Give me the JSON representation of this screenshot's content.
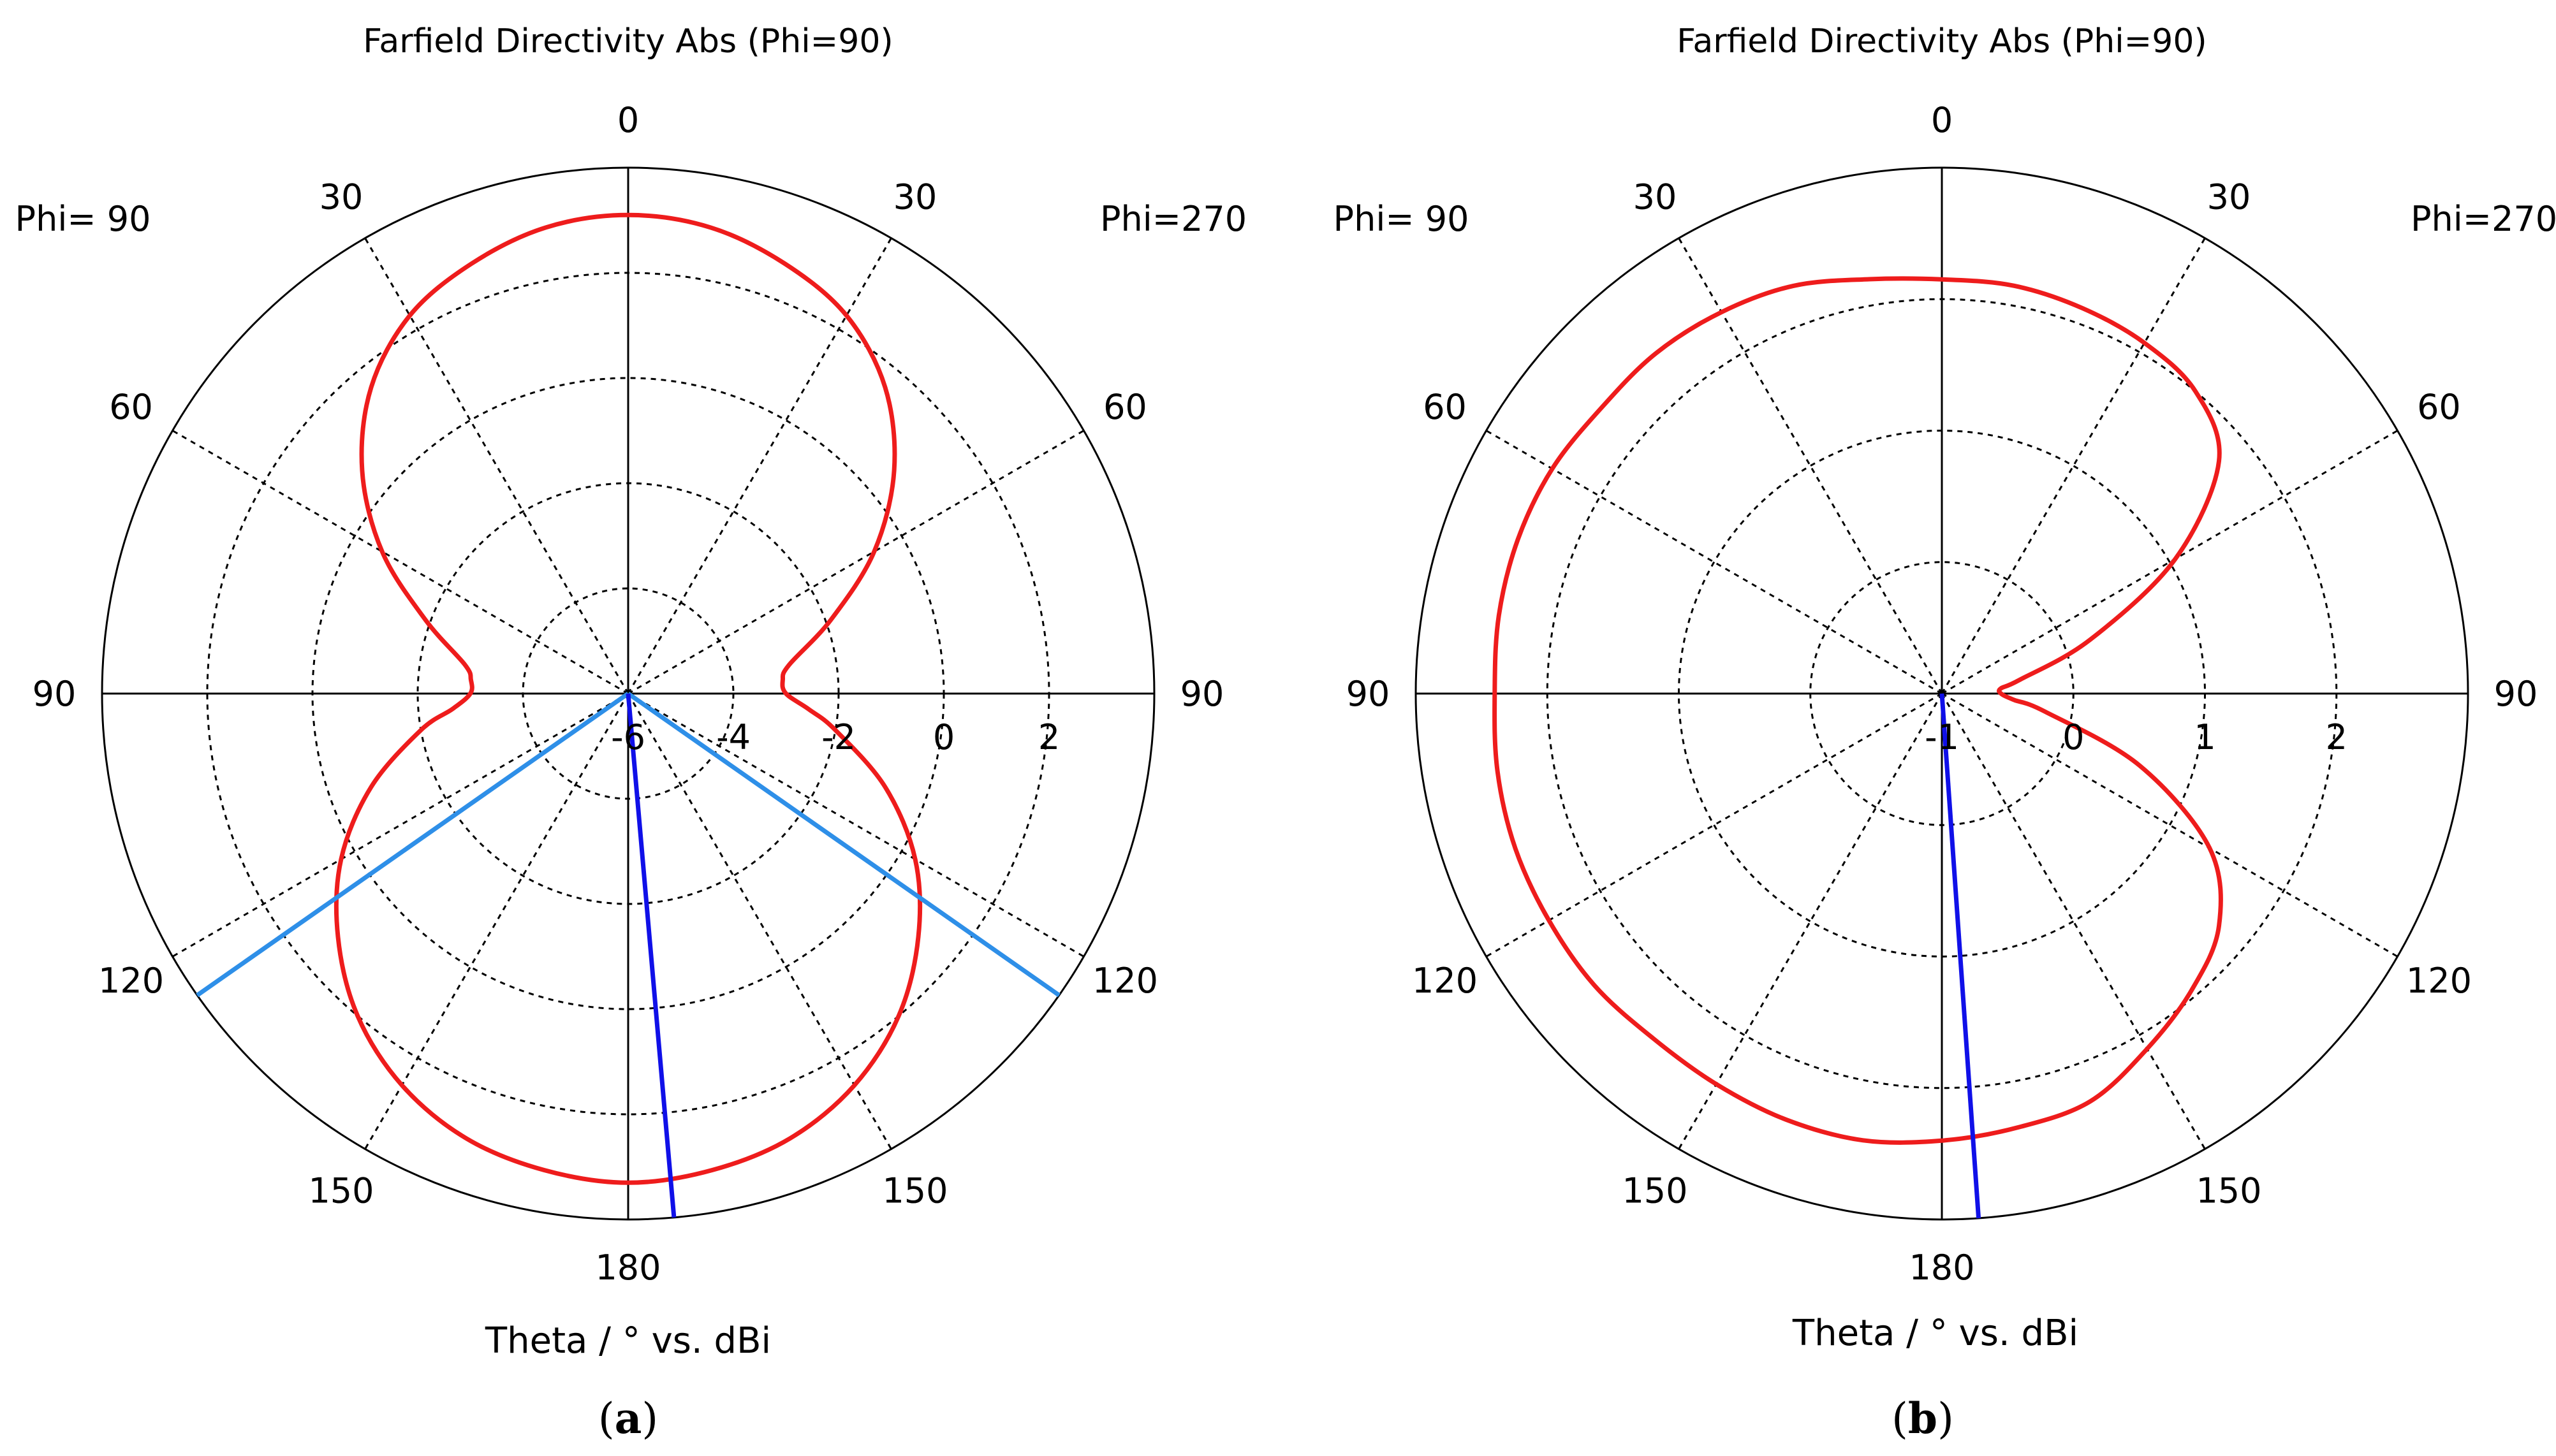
{
  "chart_data": [
    {
      "type": "polar",
      "panel_label": "a",
      "title": "Farfield Directivity Abs (Phi=90)",
      "axis_label": "Theta / ° vs. dBi",
      "left_side_label": "Phi= 90",
      "right_side_label": "Phi=270",
      "angle_ticks": [
        "0",
        "30",
        "60",
        "90",
        "120",
        "150",
        "180"
      ],
      "radial_range_dbi": [
        -6,
        4
      ],
      "radial_ticks": [
        -6,
        -4,
        -2,
        0,
        2
      ],
      "rings_dbi": [
        -4,
        -2,
        0,
        2
      ],
      "trace_color": "#ee1c1c",
      "main_lobe_color": "#1010e8",
      "beamwidth_color": "#2e8fe8",
      "main_lobe_direction_deg": 175,
      "half_power_beam_edges_deg": [
        125,
        235
      ],
      "series": [
        {
          "name": "Directivity (dBi)",
          "theta_deg": [
            0,
            10,
            20,
            30,
            40,
            50,
            60,
            70,
            80,
            85,
            90,
            95,
            100,
            110,
            120,
            130,
            140,
            150,
            160,
            170,
            180,
            190,
            200,
            210,
            220,
            230,
            240,
            250,
            260,
            265,
            270,
            275,
            280,
            290,
            300,
            310,
            320,
            330,
            340,
            350
          ],
          "dbi": [
            3.1,
            3.0,
            2.7,
            2.3,
            1.6,
            0.6,
            -0.6,
            -1.9,
            -2.9,
            -3.05,
            -3.0,
            -2.55,
            -2.0,
            -0.8,
            0.3,
            1.2,
            2.0,
            2.6,
            3.0,
            3.2,
            3.3,
            3.2,
            3.0,
            2.6,
            2.0,
            1.2,
            0.3,
            -0.8,
            -2.0,
            -2.65,
            -3.0,
            -3.0,
            -2.85,
            -1.9,
            -0.6,
            0.6,
            1.6,
            2.3,
            2.7,
            3.0
          ]
        }
      ]
    },
    {
      "type": "polar",
      "panel_label": "b",
      "title": "Farfield Directivity Abs (Phi=90)",
      "axis_label": "Theta / ° vs. dBi",
      "left_side_label": "Phi= 90",
      "right_side_label": "Phi=270",
      "angle_ticks": [
        "0",
        "30",
        "60",
        "90",
        "120",
        "150",
        "180"
      ],
      "radial_range_dbi": [
        -1,
        3
      ],
      "radial_ticks": [
        -1,
        0,
        1,
        2
      ],
      "rings_dbi": [
        0,
        1,
        2
      ],
      "trace_color": "#ee1c1c",
      "main_lobe_color": "#1010e8",
      "main_lobe_direction_deg": 176,
      "series": [
        {
          "name": "Directivity (dBi)",
          "theta_deg": [
            0,
            10,
            20,
            30,
            40,
            50,
            60,
            70,
            80,
            85,
            90,
            95,
            100,
            110,
            120,
            130,
            140,
            150,
            160,
            170,
            180,
            190,
            200,
            210,
            220,
            230,
            240,
            250,
            260,
            270,
            280,
            290,
            300,
            310,
            320,
            330,
            340,
            350
          ],
          "dbi": [
            2.15,
            2.15,
            2.12,
            2.08,
            2.0,
            1.75,
            1.05,
            0.2,
            -0.4,
            -0.55,
            -0.55,
            -0.45,
            -0.2,
            0.6,
            1.35,
            1.75,
            1.95,
            2.12,
            2.3,
            2.35,
            2.4,
            2.45,
            2.45,
            2.43,
            2.42,
            2.45,
            2.45,
            2.45,
            2.43,
            2.4,
            2.42,
            2.43,
            2.42,
            2.38,
            2.38,
            2.35,
            2.3,
            2.2
          ]
        }
      ]
    }
  ]
}
